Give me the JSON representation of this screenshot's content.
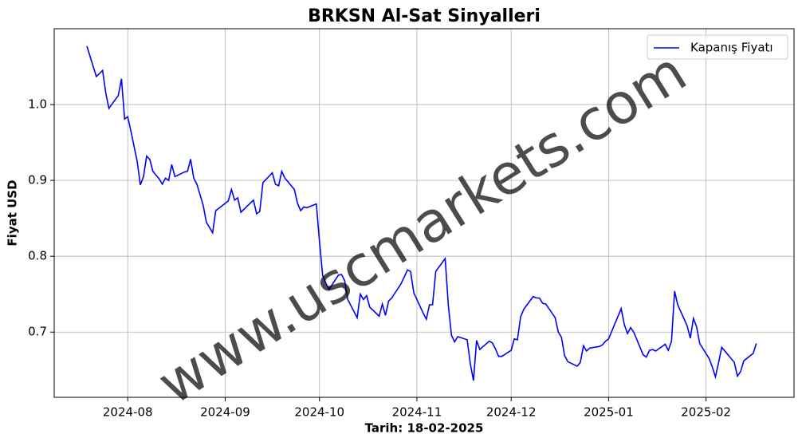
{
  "chart_data": {
    "type": "line",
    "title": "BRKSN Al-Sat Sinyalleri",
    "xlabel": "Tarih: 18-02-2025",
    "ylabel": "Fiyat USD",
    "watermark": "www.uscmarkets.com",
    "legend_position": "upper right",
    "grid": true,
    "xlim": [
      -23.4,
      212
    ],
    "xticks": [
      {
        "value": 0,
        "label": "2024-08"
      },
      {
        "value": 31,
        "label": "2024-09"
      },
      {
        "value": 61,
        "label": "2024-10"
      },
      {
        "value": 92,
        "label": "2024-11"
      },
      {
        "value": 122,
        "label": "2024-12"
      },
      {
        "value": 153,
        "label": "2025-01"
      },
      {
        "value": 184,
        "label": "2025-02"
      }
    ],
    "ylim": [
      0.614,
      1.1
    ],
    "yticks": [
      0.7,
      0.8,
      0.9,
      {
        "value": 1,
        "label": "1.0"
      }
    ],
    "x": [
      -13,
      -10,
      -8,
      -7,
      -6,
      -3,
      -2,
      -1,
      0,
      1,
      3,
      4,
      5,
      6,
      7,
      8,
      10,
      11,
      12,
      13,
      14,
      15,
      18,
      19,
      20,
      21,
      22,
      24,
      25,
      27,
      28,
      32,
      33,
      34,
      35,
      36,
      39,
      40,
      41,
      42,
      43,
      46,
      47,
      48,
      49,
      50,
      53,
      54,
      55,
      56,
      57,
      60,
      61,
      62,
      63,
      64,
      67,
      68,
      69,
      70,
      73,
      74,
      75,
      76,
      77,
      80,
      81,
      82,
      83,
      84,
      87,
      88,
      89,
      90,
      91,
      94,
      95,
      96,
      97,
      98,
      101,
      102,
      103,
      104,
      105,
      108,
      109,
      110,
      111,
      112,
      115,
      116,
      117,
      118,
      119,
      122,
      123,
      124,
      125,
      126,
      129,
      130,
      131,
      132,
      133,
      136,
      137,
      138,
      139,
      140,
      143,
      144,
      145,
      146,
      147,
      150,
      151,
      152,
      153,
      157,
      158,
      159,
      160,
      161,
      164,
      165,
      166,
      167,
      168,
      171,
      172,
      173,
      174,
      175,
      178,
      179,
      180,
      181,
      182,
      185,
      186,
      187,
      188,
      189,
      192,
      193,
      194,
      195,
      196,
      199,
      200
    ],
    "series": [
      {
        "name": "Kapanış Fiyatı",
        "color": "#0000ff",
        "values": [
          1.077,
          1.037,
          1.045,
          1.015,
          0.995,
          1.012,
          1.034,
          0.981,
          0.984,
          0.965,
          0.925,
          0.894,
          0.905,
          0.932,
          0.928,
          0.912,
          0.902,
          0.895,
          0.903,
          0.9,
          0.921,
          0.905,
          0.911,
          0.912,
          0.928,
          0.903,
          0.895,
          0.867,
          0.845,
          0.831,
          0.86,
          0.873,
          0.888,
          0.874,
          0.877,
          0.858,
          0.87,
          0.874,
          0.856,
          0.859,
          0.897,
          0.91,
          0.895,
          0.893,
          0.912,
          0.903,
          0.888,
          0.87,
          0.86,
          0.865,
          0.864,
          0.869,
          0.82,
          0.775,
          0.765,
          0.756,
          0.775,
          0.776,
          0.768,
          0.743,
          0.719,
          0.75,
          0.743,
          0.748,
          0.733,
          0.721,
          0.737,
          0.722,
          0.741,
          0.745,
          0.764,
          0.773,
          0.782,
          0.78,
          0.752,
          0.725,
          0.717,
          0.736,
          0.736,
          0.78,
          0.797,
          0.735,
          0.696,
          0.687,
          0.694,
          0.69,
          0.658,
          0.636,
          0.689,
          0.677,
          0.688,
          0.686,
          0.678,
          0.668,
          0.668,
          0.676,
          0.691,
          0.69,
          0.72,
          0.73,
          0.747,
          0.745,
          0.745,
          0.738,
          0.737,
          0.719,
          0.7,
          0.693,
          0.669,
          0.661,
          0.655,
          0.66,
          0.682,
          0.675,
          0.679,
          0.681,
          0.683,
          0.688,
          0.691,
          0.731,
          0.71,
          0.698,
          0.706,
          0.7,
          0.67,
          0.667,
          0.676,
          0.677,
          0.675,
          0.684,
          0.676,
          0.688,
          0.754,
          0.736,
          0.708,
          0.692,
          0.718,
          0.707,
          0.685,
          0.665,
          0.654,
          0.641,
          0.66,
          0.68,
          0.665,
          0.66,
          0.642,
          0.648,
          0.662,
          0.672,
          0.685
        ]
      }
    ]
  }
}
